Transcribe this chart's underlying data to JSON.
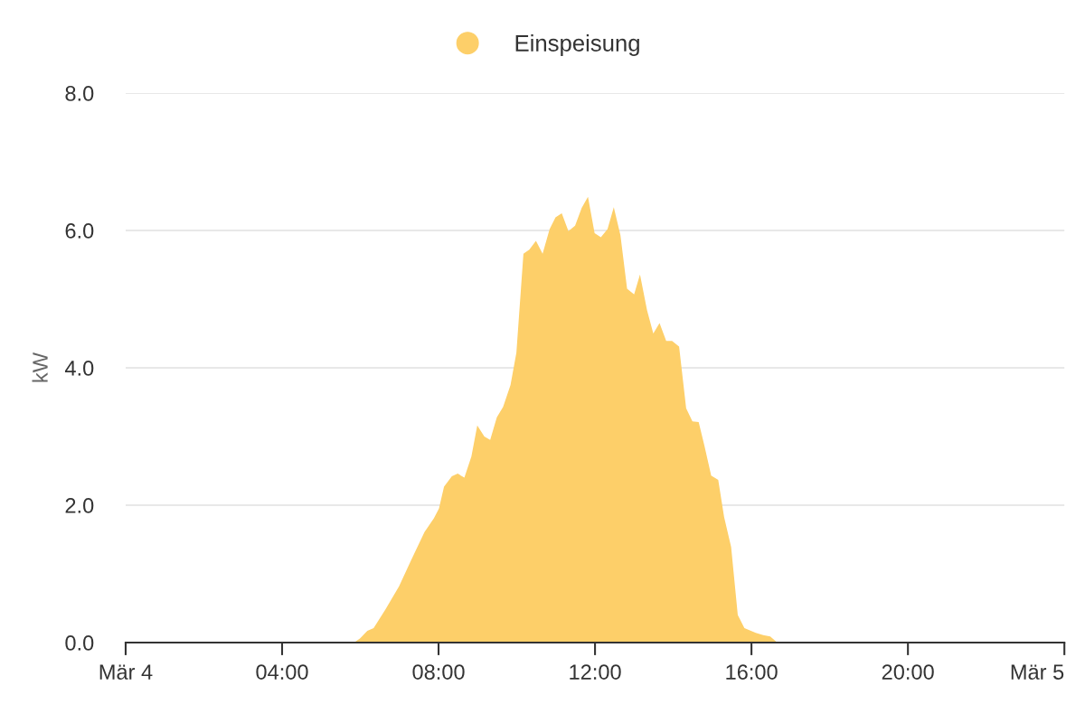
{
  "chart_data": {
    "type": "area",
    "ylabel": "kW",
    "legend": "top",
    "grid": "y",
    "x": [
      5.84,
      5.99,
      6.18,
      6.34,
      6.64,
      6.99,
      7.3,
      7.64,
      7.88,
      8.01,
      8.14,
      8.34,
      8.49,
      8.66,
      8.84,
      8.99,
      9.17,
      9.32,
      9.49,
      9.65,
      9.84,
      9.99,
      10.17,
      10.32,
      10.49,
      10.66,
      10.84,
      10.99,
      11.15,
      11.32,
      11.49,
      11.66,
      11.82,
      11.99,
      12.15,
      12.32,
      12.48,
      12.65,
      12.82,
      13.0,
      13.15,
      13.33,
      13.49,
      13.65,
      13.82,
      13.97,
      14.15,
      14.33,
      14.49,
      14.65,
      14.8,
      14.97,
      15.15,
      15.3,
      15.48,
      15.65,
      15.82,
      16.11,
      16.3,
      16.48,
      16.66
    ],
    "series": [
      {
        "name": "Einspeisung",
        "color": "#fdcf69",
        "values": [
          0,
          0.06,
          0.17,
          0.21,
          0.48,
          0.82,
          1.2,
          1.61,
          1.81,
          1.95,
          2.27,
          2.42,
          2.46,
          2.4,
          2.71,
          3.16,
          3.0,
          2.95,
          3.28,
          3.43,
          3.75,
          4.22,
          5.66,
          5.72,
          5.85,
          5.66,
          6.02,
          6.19,
          6.25,
          5.99,
          6.07,
          6.33,
          6.49,
          5.96,
          5.9,
          6.02,
          6.34,
          5.93,
          5.15,
          5.07,
          5.36,
          4.84,
          4.5,
          4.65,
          4.39,
          4.39,
          4.31,
          3.41,
          3.22,
          3.21,
          2.86,
          2.43,
          2.37,
          1.83,
          1.39,
          0.4,
          0.21,
          0.14,
          0.11,
          0.09,
          0
        ]
      }
    ],
    "xlim": [
      0,
      24
    ],
    "xticks": [
      {
        "value": 0,
        "label": "Mär 4"
      },
      {
        "value": 4,
        "label": "04:00"
      },
      {
        "value": 8,
        "label": "08:00"
      },
      {
        "value": 12,
        "label": "12:00"
      },
      {
        "value": 16,
        "label": "16:00"
      },
      {
        "value": 20,
        "label": "20:00"
      },
      {
        "value": 24,
        "label": "Mär 5"
      }
    ],
    "ylim": [
      0,
      8
    ],
    "yticks": [
      {
        "value": 0,
        "label": "0.0"
      },
      {
        "value": 2,
        "label": "2.0"
      },
      {
        "value": 4,
        "label": "4.0"
      },
      {
        "value": 6,
        "label": "6.0"
      },
      {
        "value": 8,
        "label": "8.0"
      }
    ]
  }
}
